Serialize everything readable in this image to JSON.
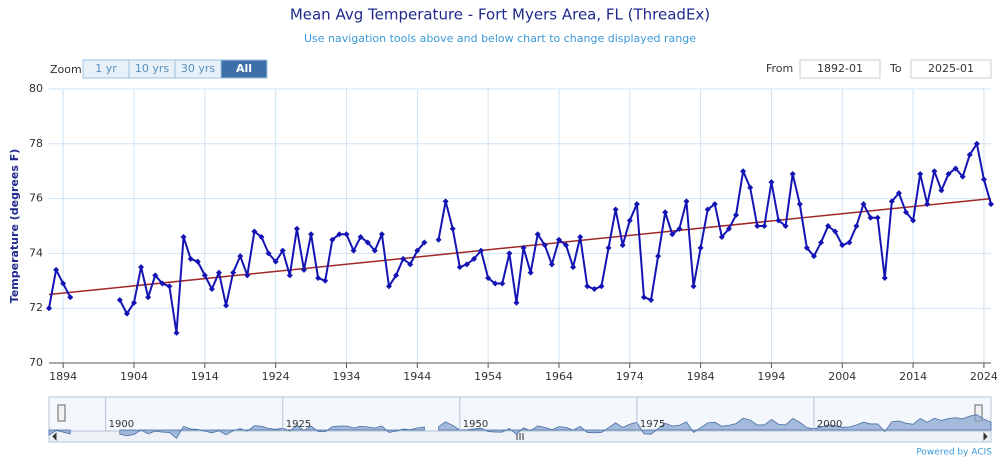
{
  "chart_data": {
    "type": "line",
    "title": "Mean Avg Temperature - Fort Myers Area, FL (ThreadEx)",
    "subtitle": "Use navigation tools above and below chart to change displayed range",
    "y_label": "Temperature (degrees F)",
    "x": [
      1892,
      1893,
      1894,
      1895,
      1896,
      1897,
      1898,
      1899,
      1900,
      1901,
      1902,
      1903,
      1904,
      1905,
      1906,
      1907,
      1908,
      1909,
      1910,
      1911,
      1912,
      1913,
      1914,
      1915,
      1916,
      1917,
      1918,
      1919,
      1920,
      1921,
      1922,
      1923,
      1924,
      1925,
      1926,
      1927,
      1928,
      1929,
      1930,
      1931,
      1932,
      1933,
      1934,
      1935,
      1936,
      1937,
      1938,
      1939,
      1940,
      1941,
      1942,
      1943,
      1944,
      1945,
      1946,
      1947,
      1948,
      1949,
      1950,
      1951,
      1952,
      1953,
      1954,
      1955,
      1956,
      1957,
      1958,
      1959,
      1960,
      1961,
      1962,
      1963,
      1964,
      1965,
      1966,
      1967,
      1968,
      1969,
      1970,
      1971,
      1972,
      1973,
      1974,
      1975,
      1976,
      1977,
      1978,
      1979,
      1980,
      1981,
      1982,
      1983,
      1984,
      1985,
      1986,
      1987,
      1988,
      1989,
      1990,
      1991,
      1992,
      1993,
      1994,
      1995,
      1996,
      1997,
      1998,
      1999,
      2000,
      2001,
      2002,
      2003,
      2004,
      2005,
      2006,
      2007,
      2008,
      2009,
      2010,
      2011,
      2012,
      2013,
      2014,
      2015,
      2016,
      2017,
      2018,
      2019,
      2020,
      2021,
      2022,
      2023,
      2024,
      2025
    ],
    "series": [
      {
        "color": "#1414b4",
        "values": [
          72.0,
          73.4,
          72.9,
          72.4,
          null,
          null,
          null,
          null,
          null,
          null,
          72.3,
          71.8,
          72.2,
          73.5,
          72.4,
          73.2,
          72.9,
          72.8,
          71.1,
          74.6,
          73.8,
          73.7,
          73.2,
          72.7,
          73.3,
          72.1,
          73.3,
          73.9,
          73.2,
          74.8,
          74.6,
          74.0,
          73.7,
          74.1,
          73.2,
          74.9,
          73.4,
          74.7,
          73.1,
          73.0,
          74.5,
          74.7,
          74.7,
          74.1,
          74.6,
          74.4,
          74.1,
          74.7,
          72.8,
          73.2,
          73.8,
          73.6,
          74.1,
          74.4,
          null,
          74.5,
          75.9,
          74.9,
          73.5,
          73.6,
          73.8,
          74.1,
          73.1,
          72.9,
          72.9,
          74.0,
          72.2,
          74.2,
          73.3,
          74.7,
          74.3,
          73.6,
          74.5,
          74.3,
          73.5,
          74.6,
          72.8,
          72.7,
          72.8,
          74.2,
          75.6,
          74.3,
          75.2,
          75.8,
          72.4,
          72.3,
          73.9,
          75.5,
          74.7,
          74.9,
          75.9,
          72.8,
          74.2,
          75.6,
          75.8,
          74.6,
          74.9,
          75.4,
          77.0,
          76.4,
          75.0,
          75.0,
          76.6,
          75.2,
          75.0,
          76.9,
          75.8,
          74.2,
          73.9,
          74.4,
          75.0,
          74.8,
          74.3,
          74.4,
          75.0,
          75.8,
          75.3,
          75.3,
          73.1,
          75.9,
          76.2,
          75.5,
          75.2,
          76.9,
          75.8,
          77.0,
          76.3,
          76.9,
          77.1,
          76.8,
          77.6,
          78.0,
          76.7,
          75.8
        ]
      }
    ],
    "trend": {
      "color": "#a02828",
      "x": [
        1892,
        2025
      ],
      "values": [
        72.5,
        76.0
      ]
    },
    "xlim": [
      1892,
      2025
    ],
    "xticks": [
      1894,
      1904,
      1914,
      1924,
      1934,
      1944,
      1954,
      1964,
      1974,
      1984,
      1994,
      2004,
      2014,
      2024
    ],
    "ylim": [
      70,
      80
    ],
    "yticks": [
      70,
      72,
      74,
      76,
      78,
      80
    ],
    "grid": true,
    "navigator": {
      "xticks": [
        1900,
        1925,
        1950,
        1975,
        2000
      ]
    }
  },
  "ui": {
    "zoom_label": "Zoom",
    "zoom_buttons": [
      "1 yr",
      "10 yrs",
      "30 yrs",
      "All"
    ],
    "active_button": 3,
    "from_label": "From",
    "from_value": "1892-01",
    "to_label": "To",
    "to_value": "2025-01",
    "credit": "Powered by ACIS"
  }
}
